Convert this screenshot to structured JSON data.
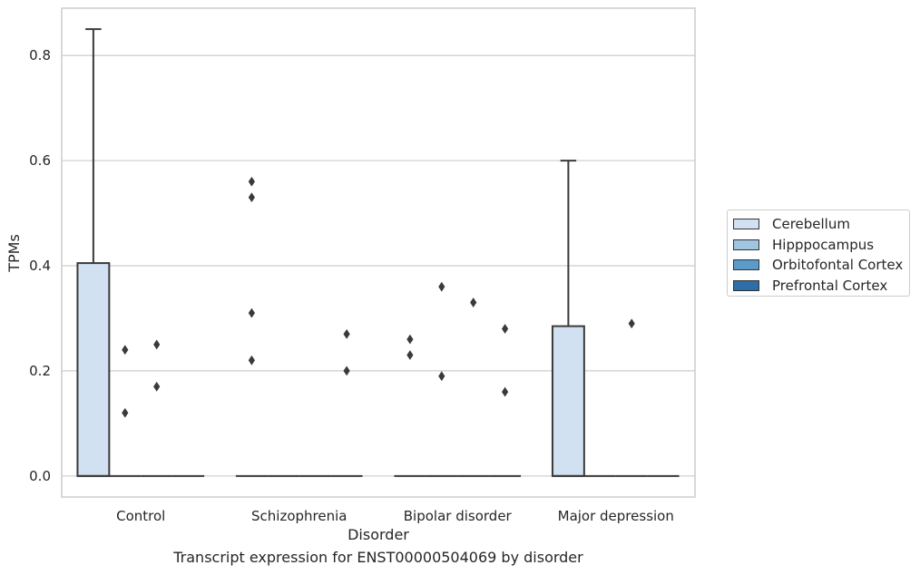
{
  "chart_data": {
    "type": "box",
    "title": "Transcript expression for ENST00000504069 by disorder",
    "xlabel": "Disorder",
    "ylabel": "TPMs",
    "categories": [
      "Control",
      "Schizophrenia",
      "Bipolar disorder",
      "Major depression"
    ],
    "ylim": [
      -0.04,
      0.89
    ],
    "yticks": [
      0.0,
      0.2,
      0.4,
      0.6,
      0.8
    ],
    "ytick_labels": [
      "0.0",
      "0.2",
      "0.4",
      "0.6",
      "0.8"
    ],
    "grid": "horizontal",
    "legend_position": "right",
    "series": [
      {
        "name": "Cerebellum",
        "color": "#d1e1f1",
        "boxes": [
          {
            "category": "Control",
            "q1": 0.0,
            "median": 0.0,
            "q3": 0.405,
            "whisker_low": 0.0,
            "whisker_high": 0.85,
            "outliers": []
          },
          {
            "category": "Schizophrenia",
            "q1": 0.0,
            "median": 0.0,
            "q3": 0.0,
            "whisker_low": 0.0,
            "whisker_high": 0.0,
            "outliers": [
              0.53,
              0.56,
              0.31,
              0.22
            ]
          },
          {
            "category": "Bipolar disorder",
            "q1": 0.0,
            "median": 0.0,
            "q3": 0.0,
            "whisker_low": 0.0,
            "whisker_high": 0.0,
            "outliers": [
              0.26,
              0.23
            ]
          },
          {
            "category": "Major depression",
            "q1": 0.0,
            "median": 0.0,
            "q3": 0.285,
            "whisker_low": 0.0,
            "whisker_high": 0.6,
            "outliers": []
          }
        ]
      },
      {
        "name": "Hipppocampus",
        "color": "#9fc5df",
        "boxes": [
          {
            "category": "Control",
            "q1": 0.0,
            "median": 0.0,
            "q3": 0.0,
            "whisker_low": 0.0,
            "whisker_high": 0.0,
            "outliers": [
              0.24,
              0.12
            ]
          },
          {
            "category": "Schizophrenia",
            "q1": 0.0,
            "median": 0.0,
            "q3": 0.0,
            "whisker_low": 0.0,
            "whisker_high": 0.0,
            "outliers": []
          },
          {
            "category": "Bipolar disorder",
            "q1": 0.0,
            "median": 0.0,
            "q3": 0.0,
            "whisker_low": 0.0,
            "whisker_high": 0.0,
            "outliers": [
              0.36,
              0.19
            ]
          },
          {
            "category": "Major depression",
            "q1": 0.0,
            "median": 0.0,
            "q3": 0.0,
            "whisker_low": 0.0,
            "whisker_high": 0.0,
            "outliers": []
          }
        ]
      },
      {
        "name": "Orbitofontal Cortex",
        "color": "#5b9bc9",
        "boxes": [
          {
            "category": "Control",
            "q1": 0.0,
            "median": 0.0,
            "q3": 0.0,
            "whisker_low": 0.0,
            "whisker_high": 0.0,
            "outliers": [
              0.25,
              0.17
            ]
          },
          {
            "category": "Schizophrenia",
            "q1": 0.0,
            "median": 0.0,
            "q3": 0.0,
            "whisker_low": 0.0,
            "whisker_high": 0.0,
            "outliers": []
          },
          {
            "category": "Bipolar disorder",
            "q1": 0.0,
            "median": 0.0,
            "q3": 0.0,
            "whisker_low": 0.0,
            "whisker_high": 0.0,
            "outliers": [
              0.33
            ]
          },
          {
            "category": "Major depression",
            "q1": 0.0,
            "median": 0.0,
            "q3": 0.0,
            "whisker_low": 0.0,
            "whisker_high": 0.0,
            "outliers": [
              0.29
            ]
          }
        ]
      },
      {
        "name": "Prefrontal Cortex",
        "color": "#2e6ea8",
        "boxes": [
          {
            "category": "Control",
            "q1": 0.0,
            "median": 0.0,
            "q3": 0.0,
            "whisker_low": 0.0,
            "whisker_high": 0.0,
            "outliers": []
          },
          {
            "category": "Schizophrenia",
            "q1": 0.0,
            "median": 0.0,
            "q3": 0.0,
            "whisker_low": 0.0,
            "whisker_high": 0.0,
            "outliers": [
              0.27,
              0.2
            ]
          },
          {
            "category": "Bipolar disorder",
            "q1": 0.0,
            "median": 0.0,
            "q3": 0.0,
            "whisker_low": 0.0,
            "whisker_high": 0.0,
            "outliers": [
              0.28,
              0.16
            ]
          },
          {
            "category": "Major depression",
            "q1": 0.0,
            "median": 0.0,
            "q3": 0.0,
            "whisker_low": 0.0,
            "whisker_high": 0.0,
            "outliers": []
          }
        ]
      }
    ]
  }
}
